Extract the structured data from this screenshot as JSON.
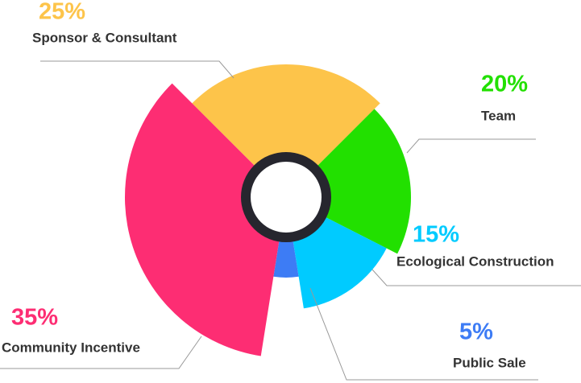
{
  "chart_data": {
    "type": "pie",
    "categories": [
      "Sponsor & Consultant",
      "Team",
      "Ecological Construction",
      "Public Sale",
      "Community Incentive"
    ],
    "values": [
      25,
      20,
      15,
      5,
      35
    ],
    "value_labels": [
      "25%",
      "20%",
      "15%",
      "5%",
      "35%"
    ],
    "colors": [
      "#fdc44a",
      "#22e000",
      "#00cbff",
      "#3d7cf5",
      "#fd2d73"
    ]
  }
}
